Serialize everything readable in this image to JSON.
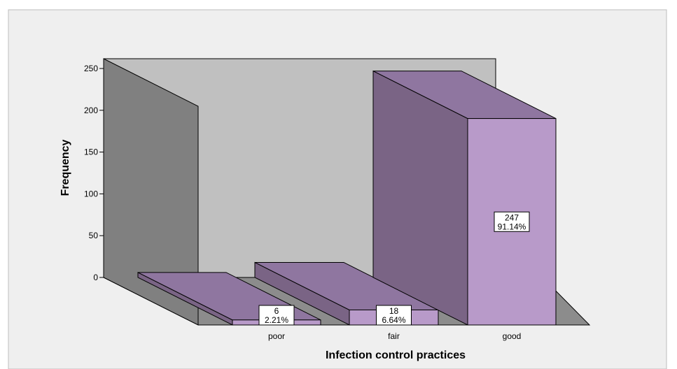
{
  "chart_data": {
    "type": "bar",
    "categories": [
      "poor",
      "fair",
      "good"
    ],
    "values": [
      6,
      18,
      247
    ],
    "percent_labels": [
      "2.21%",
      "6.64%",
      "91.14%"
    ],
    "xlabel": "Infection control practices",
    "ylabel": "Frequency",
    "ylim": [
      0,
      250
    ],
    "yticks": [
      0,
      50,
      100,
      150,
      200,
      250
    ],
    "projection": "3d",
    "grid": false,
    "colors": {
      "bar_front": "#b89ac9",
      "bar_side": "#7a6485",
      "bar_top": "#8f76a0",
      "back_wall": "#c0c0c0",
      "left_wall": "#808080",
      "floor": "#8c8c8c"
    }
  }
}
